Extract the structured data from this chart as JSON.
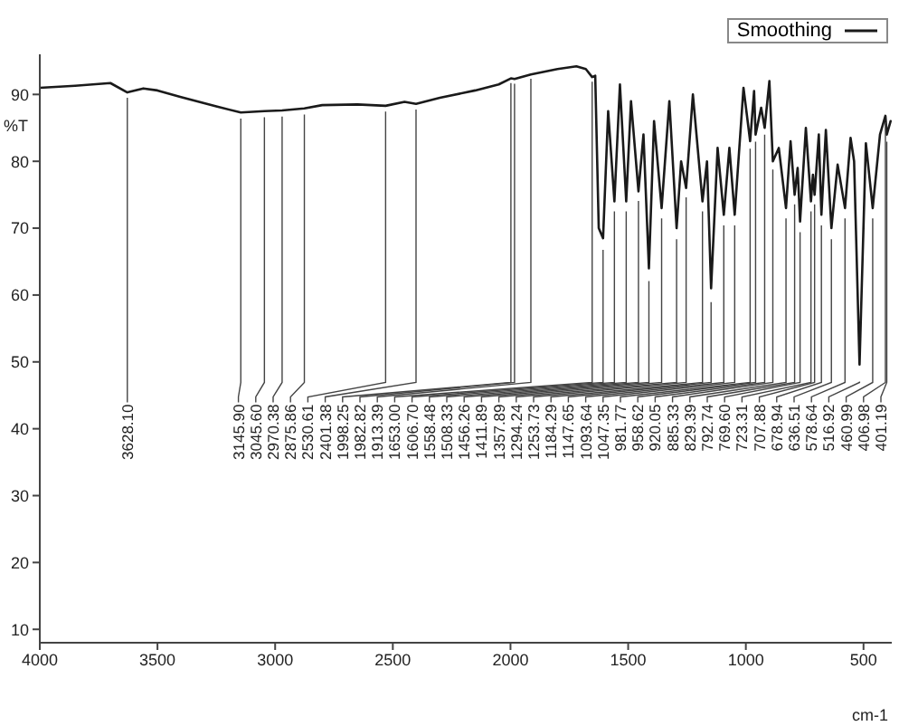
{
  "chart_data": {
    "type": "line",
    "xlabel": "cm-1",
    "ylabel": "%T",
    "xlim": [
      4000,
      380
    ],
    "ylim": [
      8,
      96
    ],
    "xticks": [
      4000,
      3500,
      3000,
      2500,
      2000,
      1500,
      1000,
      500
    ],
    "yticks": [
      10,
      20,
      30,
      40,
      50,
      60,
      70,
      80,
      90
    ],
    "legend": "top right",
    "marker": "none",
    "line_style": "solid",
    "x": [
      4000,
      3850,
      3700,
      3628.1,
      3560,
      3500,
      3400,
      3250,
      3145.9,
      3045.6,
      2970.38,
      2875.86,
      2800,
      2650,
      2530.61,
      2450,
      2401.38,
      2300,
      2150,
      2050,
      1998.25,
      1982.82,
      1913.39,
      1800,
      1720,
      1680,
      1653,
      1640,
      1625,
      1606.7,
      1585,
      1558.48,
      1535,
      1508.33,
      1488,
      1456.26,
      1435,
      1411.89,
      1390,
      1357.89,
      1325,
      1294.24,
      1275,
      1253.73,
      1225,
      1184.29,
      1165,
      1147.65,
      1120,
      1093.64,
      1070,
      1047.35,
      1010,
      981.77,
      965,
      958.62,
      935,
      920.05,
      900,
      885.33,
      860,
      829.39,
      810,
      792.74,
      780,
      769.6,
      745,
      723.31,
      715,
      707.88,
      690,
      678.94,
      660,
      636.51,
      610,
      578.64,
      555,
      540,
      516.92,
      490,
      460.99,
      430,
      406.98,
      401.19,
      385
    ],
    "series": [
      {
        "name": "Smoothing",
        "color": "#1a1a1a",
        "values": [
          91,
          91.3,
          91.7,
          90.3,
          90.9,
          90.6,
          89.6,
          88.2,
          87.3,
          87.5,
          87.6,
          87.9,
          88.4,
          88.5,
          88.3,
          88.9,
          88.6,
          89.5,
          90.6,
          91.5,
          92.4,
          92.3,
          93,
          93.8,
          94.2,
          93.8,
          92.6,
          92.8,
          70,
          68.5,
          87.5,
          74,
          91.5,
          74,
          89,
          75.5,
          84,
          64,
          86,
          73,
          89,
          70,
          80,
          76,
          90,
          74,
          80,
          61,
          82,
          72,
          82,
          72,
          91,
          83,
          90.5,
          84,
          88,
          85,
          92,
          80,
          82,
          73,
          83,
          75,
          79,
          71,
          85,
          74,
          78,
          75,
          84,
          72,
          84.7,
          70,
          79.5,
          73,
          83.5,
          80,
          49.6,
          82.7,
          73,
          84,
          86.8,
          84,
          86
        ]
      }
    ],
    "annotations": [
      {
        "text": "3628.10",
        "x": 3628.1,
        "y": 90.3
      },
      {
        "text": "3145.90",
        "x": 3145.9,
        "y": 87.3
      },
      {
        "text": "3045.60",
        "x": 3045.6,
        "y": 87.5
      },
      {
        "text": "2970.38",
        "x": 2970.38,
        "y": 87.6
      },
      {
        "text": "2875.86",
        "x": 2875.86,
        "y": 87.9
      },
      {
        "text": "2530.61",
        "x": 2530.61,
        "y": 88.3
      },
      {
        "text": "2401.38",
        "x": 2401.38,
        "y": 88.6
      },
      {
        "text": "1998.25",
        "x": 1998.25,
        "y": 92.4
      },
      {
        "text": "1982.82",
        "x": 1982.82,
        "y": 92.3
      },
      {
        "text": "1913.39",
        "x": 1913.39,
        "y": 93
      },
      {
        "text": "1653.00",
        "x": 1653,
        "y": 92.6
      },
      {
        "text": "1606.70",
        "x": 1606.7,
        "y": 68.5
      },
      {
        "text": "1558.48",
        "x": 1558.48,
        "y": 74
      },
      {
        "text": "1508.33",
        "x": 1508.33,
        "y": 74
      },
      {
        "text": "1456.26",
        "x": 1456.26,
        "y": 75.5
      },
      {
        "text": "1411.89",
        "x": 1411.89,
        "y": 64
      },
      {
        "text": "1357.89",
        "x": 1357.89,
        "y": 73
      },
      {
        "text": "1294.24",
        "x": 1294.24,
        "y": 70
      },
      {
        "text": "1253.73",
        "x": 1253.73,
        "y": 76
      },
      {
        "text": "1184.29",
        "x": 1184.29,
        "y": 74
      },
      {
        "text": "1147.65",
        "x": 1147.65,
        "y": 61
      },
      {
        "text": "1093.64",
        "x": 1093.64,
        "y": 72
      },
      {
        "text": "1047.35",
        "x": 1047.35,
        "y": 72
      },
      {
        "text": "981.77",
        "x": 981.77,
        "y": 83
      },
      {
        "text": "958.62",
        "x": 958.62,
        "y": 84
      },
      {
        "text": "920.05",
        "x": 920.05,
        "y": 85
      },
      {
        "text": "885.33",
        "x": 885.33,
        "y": 80
      },
      {
        "text": "829.39",
        "x": 829.39,
        "y": 73
      },
      {
        "text": "792.74",
        "x": 792.74,
        "y": 75
      },
      {
        "text": "769.60",
        "x": 769.6,
        "y": 71
      },
      {
        "text": "723.31",
        "x": 723.31,
        "y": 74
      },
      {
        "text": "707.88",
        "x": 707.88,
        "y": 75
      },
      {
        "text": "678.94",
        "x": 678.94,
        "y": 72
      },
      {
        "text": "636.51",
        "x": 636.51,
        "y": 70
      },
      {
        "text": "578.64",
        "x": 578.64,
        "y": 73
      },
      {
        "text": "516.92",
        "x": 516.92,
        "y": 49.6
      },
      {
        "text": "460.99",
        "x": 460.99,
        "y": 73
      },
      {
        "text": "406.98",
        "x": 406.98,
        "y": 86.8
      },
      {
        "text": "401.19",
        "x": 401.19,
        "y": 84
      }
    ]
  }
}
